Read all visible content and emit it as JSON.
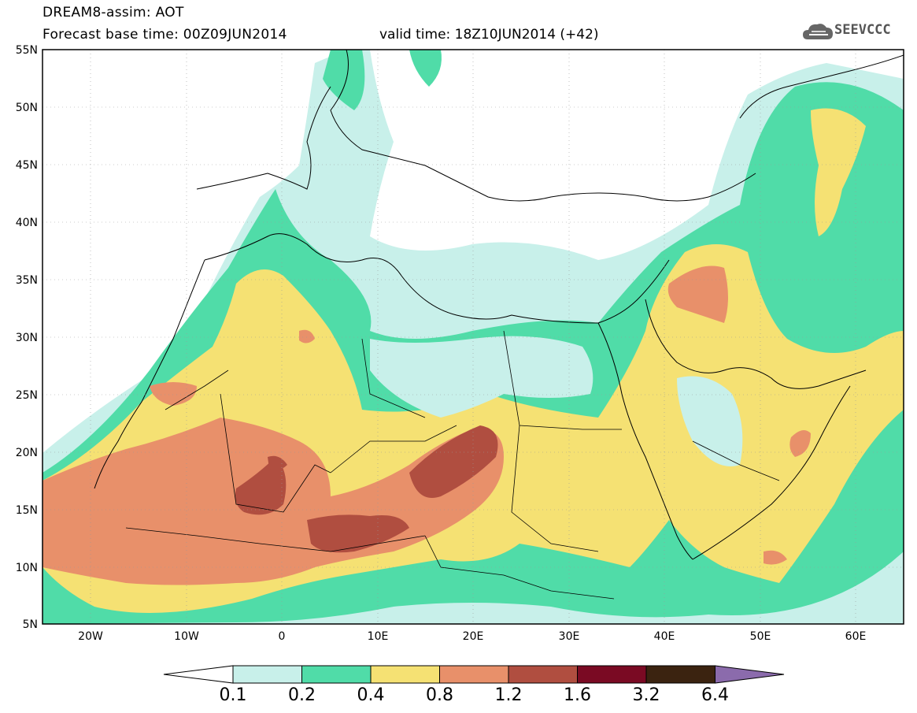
{
  "header": {
    "line1": "DREAM8-assim: AOT",
    "line2": "Forecast base time: 00Z09JUN2014",
    "valid": "valid time: 18Z10JUN2014 (+42)"
  },
  "logo": {
    "text": "SEEVCCC",
    "icon": "cloud-icon"
  },
  "map": {
    "lat_labels": [
      "55N",
      "50N",
      "45N",
      "40N",
      "35N",
      "30N",
      "25N",
      "20N",
      "15N",
      "10N",
      "5N"
    ],
    "lon_labels": [
      "20W",
      "10W",
      "0",
      "10E",
      "20E",
      "30E",
      "40E",
      "50E",
      "60E"
    ],
    "lat_range": [
      5,
      55
    ],
    "lon_range": [
      -25,
      65
    ]
  },
  "colorbar": {
    "labels": [
      "0.1",
      "0.2",
      "0.4",
      "0.8",
      "1.2",
      "1.6",
      "3.2",
      "6.4"
    ],
    "colors": [
      "#c8f0ea",
      "#50dca8",
      "#f5e173",
      "#e8906a",
      "#b04e40",
      "#7a0a23",
      "#3b2310",
      "#8b6bac"
    ]
  }
}
